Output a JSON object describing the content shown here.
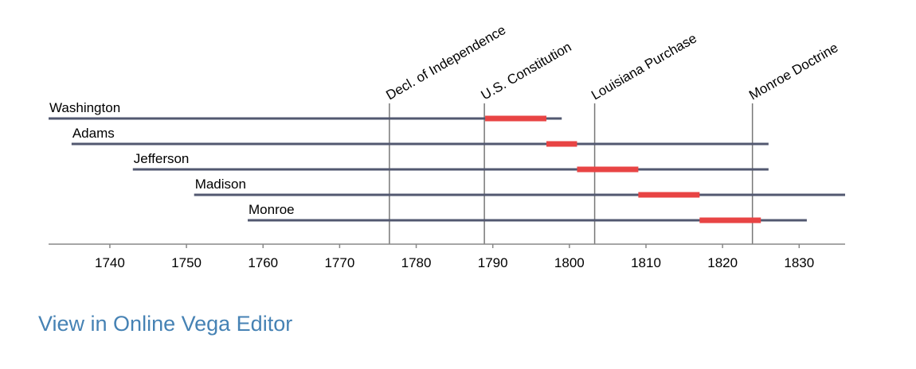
{
  "chart_data": {
    "type": "timeline",
    "xlim": [
      1732,
      1836
    ],
    "x_ticks": [
      1740,
      1750,
      1760,
      1770,
      1780,
      1790,
      1800,
      1810,
      1820,
      1830
    ],
    "people": [
      {
        "name": "Washington",
        "born": 1732,
        "died": 1799,
        "term_start": 1789,
        "term_end": 1797
      },
      {
        "name": "Adams",
        "born": 1735,
        "died": 1826,
        "term_start": 1797,
        "term_end": 1801
      },
      {
        "name": "Jefferson",
        "born": 1743,
        "died": 1826,
        "term_start": 1801,
        "term_end": 1809
      },
      {
        "name": "Madison",
        "born": 1751,
        "died": 1836,
        "term_start": 1809,
        "term_end": 1817
      },
      {
        "name": "Monroe",
        "born": 1758,
        "died": 1831,
        "term_start": 1817,
        "term_end": 1825
      }
    ],
    "events": [
      {
        "name": "Decl. of Independence",
        "year": 1776.5
      },
      {
        "name": "U.S. Constitution",
        "year": 1788.9
      },
      {
        "name": "Louisiana Purchase",
        "year": 1803.3
      },
      {
        "name": "Monroe Doctrine",
        "year": 1823.9
      }
    ],
    "colors": {
      "life": "#525870",
      "term": "#e84444",
      "event": "#777777",
      "axis": "#888888"
    }
  },
  "footer": {
    "link_label": "View in Online Vega Editor"
  }
}
